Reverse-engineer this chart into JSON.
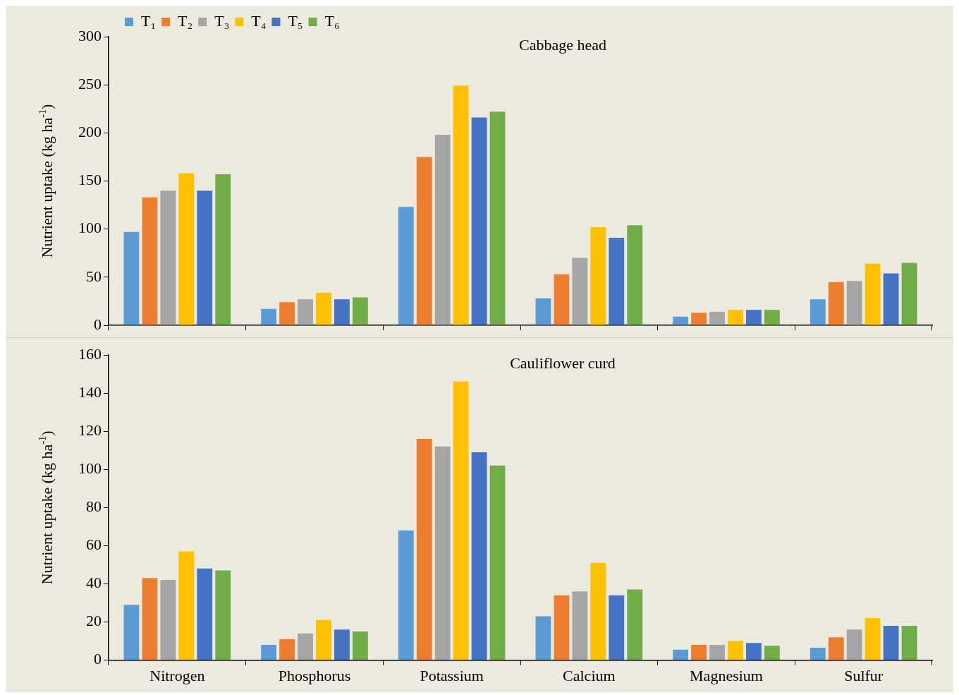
{
  "chart_data": [
    {
      "type": "bar",
      "title": "Cabbage head",
      "ylabel": "Nutrient uptake (kg ha$^{-1}$)",
      "categories": [
        null,
        null,
        null,
        null,
        null,
        null
      ],
      "series": [
        {
          "name": "T₁",
          "color": "#5b9bd5",
          "values": [
            97,
            17,
            123,
            28,
            9,
            27
          ]
        },
        {
          "name": "T₂",
          "color": "#ed7d31",
          "values": [
            133,
            24,
            175,
            53,
            13,
            45
          ]
        },
        {
          "name": "T₃",
          "color": "#a5a5a5",
          "values": [
            140,
            27,
            198,
            70,
            14,
            46
          ]
        },
        {
          "name": "T₄",
          "color": "#ffc000",
          "values": [
            158,
            34,
            249,
            102,
            16,
            64
          ]
        },
        {
          "name": "T₅",
          "color": "#4472c4",
          "values": [
            140,
            27,
            216,
            91,
            16,
            54
          ]
        },
        {
          "name": "T₆",
          "color": "#70ad47",
          "values": [
            157,
            29,
            222,
            104,
            16,
            65
          ]
        }
      ],
      "ylim": [
        0,
        300
      ],
      "yticks": [
        0,
        50,
        100,
        150,
        200,
        250,
        300
      ],
      "grid": false,
      "legend": "top left",
      "tick_labels": "y"
    },
    {
      "type": "bar",
      "title": "Cauliflower curd",
      "ylabel": "Nutrient uptake (kg ha$^{-1}$)",
      "categories": [
        "Nitrogen",
        "Phosphorus",
        "Potassium",
        "Calcium",
        "Magnesium",
        "Sulfur"
      ],
      "series": [
        {
          "color": "#5b9bd5",
          "values": [
            29,
            8,
            68,
            23,
            5.5,
            6.5
          ]
        },
        {
          "color": "#ed7d31",
          "values": [
            43,
            11,
            116,
            34,
            8,
            12
          ]
        },
        {
          "color": "#a5a5a5",
          "values": [
            42,
            14,
            112,
            36,
            8,
            16
          ]
        },
        {
          "color": "#ffc000",
          "values": [
            57,
            21,
            146,
            51,
            10,
            22
          ]
        },
        {
          "color": "#4472c4",
          "values": [
            48,
            16,
            109,
            34,
            9,
            18
          ]
        },
        {
          "color": "#70ad47",
          "values": [
            47,
            15,
            102,
            37,
            7.5,
            18
          ]
        }
      ],
      "ylim": [
        0,
        160
      ],
      "yticks": [
        0,
        20,
        40,
        60,
        80,
        100,
        120,
        140,
        160
      ],
      "grid": false,
      "legend": false
    }
  ]
}
